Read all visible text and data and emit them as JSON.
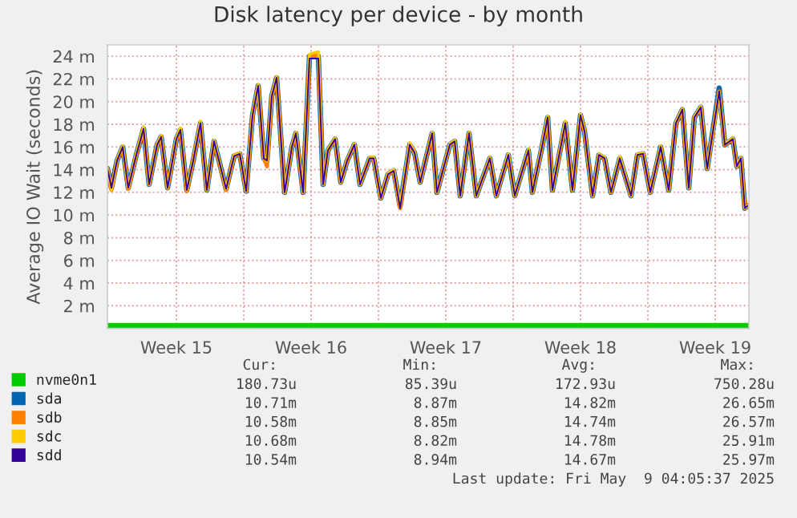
{
  "chart_data": {
    "type": "line",
    "title": "Disk latency per device - by month",
    "ylabel": "Average IO Wait (seconds)",
    "xlim": [
      "2025-04-05T22:00",
      "2025-05-09T06:00"
    ],
    "ylim": [
      0,
      25
    ],
    "xticks": [
      {
        "value": "2025-04-09T12:00",
        "label": "Week 15"
      },
      {
        "value": "2025-04-13",
        "label": null
      },
      {
        "value": "2025-04-16T12:00",
        "label": "Week 16"
      },
      {
        "value": "2025-04-20",
        "label": null
      },
      {
        "value": "2025-04-23T12:00",
        "label": "Week 17"
      },
      {
        "value": "2025-04-27",
        "label": null
      },
      {
        "value": "2025-04-30T12:00",
        "label": "Week 18"
      },
      {
        "value": "2025-05-04",
        "label": null
      },
      {
        "value": "2025-05-07T12:00",
        "label": "Week 19"
      }
    ],
    "yticks": [
      {
        "value": 2,
        "label": "2 m"
      },
      {
        "value": 4,
        "label": "4 m"
      },
      {
        "value": 6,
        "label": "6 m"
      },
      {
        "value": 8,
        "label": "8 m"
      },
      {
        "value": 10,
        "label": "10 m"
      },
      {
        "value": 12,
        "label": "12 m"
      },
      {
        "value": 14,
        "label": "14 m"
      },
      {
        "value": 16,
        "label": "16 m"
      },
      {
        "value": 18,
        "label": "18 m"
      },
      {
        "value": 20,
        "label": "20 m"
      },
      {
        "value": 22,
        "label": "22 m"
      },
      {
        "value": 24,
        "label": "24 m"
      }
    ],
    "grid": true,
    "legend": "bottom left",
    "marker": "none",
    "line_style": "solid",
    "x": [
      "2025-04-05T22:00",
      "2025-04-06T03:00",
      "2025-04-06T10:00",
      "2025-04-06T17:00",
      "2025-04-07T00:00",
      "2025-04-07T10:00",
      "2025-04-07T19:00",
      "2025-04-08T02:00",
      "2025-04-08T12:00",
      "2025-04-08T17:00",
      "2025-04-09T01:00",
      "2025-04-09T12:00",
      "2025-04-09T17:00",
      "2025-04-10T01:00",
      "2025-04-10T09:00",
      "2025-04-10T18:00",
      "2025-04-11T02:00",
      "2025-04-11T11:00",
      "2025-04-12T02:00",
      "2025-04-12T12:00",
      "2025-04-12T19:00",
      "2025-04-13T03:00",
      "2025-04-13T11:00",
      "2025-04-13T18:00",
      "2025-04-14T01:00",
      "2025-04-14T05:00",
      "2025-04-14T11:00",
      "2025-04-14T17:00",
      "2025-04-15T03:00",
      "2025-04-15T12:00",
      "2025-04-15T17:00",
      "2025-04-16T02:00",
      "2025-04-16T10:00",
      "2025-04-16T21:00",
      "2025-04-17T03:00",
      "2025-04-17T09:00",
      "2025-04-17T18:00",
      "2025-04-18T01:00",
      "2025-04-18T09:00",
      "2025-04-18T18:00",
      "2025-04-19T01:00",
      "2025-04-19T13:00",
      "2025-04-19T18:00",
      "2025-04-20T03:00",
      "2025-04-20T12:00",
      "2025-04-20T19:00",
      "2025-04-21T03:00",
      "2025-04-21T15:00",
      "2025-04-21T21:00",
      "2025-04-22T04:00",
      "2025-04-22T19:00",
      "2025-04-23T01:00",
      "2025-04-23T17:00",
      "2025-04-23T23:00",
      "2025-04-24T06:00",
      "2025-04-24T17:00",
      "2025-04-25T02:00",
      "2025-04-25T19:00",
      "2025-04-26T03:00",
      "2025-04-26T18:00",
      "2025-04-27T02:00",
      "2025-04-27T19:00",
      "2025-04-28T00:00",
      "2025-04-28T12:00",
      "2025-04-28T19:00",
      "2025-04-29T01:00",
      "2025-04-29T17:00",
      "2025-04-30T02:00",
      "2025-04-30T12:00",
      "2025-04-30T17:00",
      "2025-05-01T03:00",
      "2025-05-01T11:00",
      "2025-05-01T18:00",
      "2025-05-02T02:00",
      "2025-05-02T13:00",
      "2025-05-03T03:00",
      "2025-05-03T11:00",
      "2025-05-03T18:00",
      "2025-05-04T03:00",
      "2025-05-04T16:00",
      "2025-05-05T02:00",
      "2025-05-05T11:00",
      "2025-05-05T19:00",
      "2025-05-06T03:00",
      "2025-05-06T10:00",
      "2025-05-06T18:00",
      "2025-05-07T02:00",
      "2025-05-07T17:00",
      "2025-05-08T00:00",
      "2025-05-08T10:00",
      "2025-05-08T15:00",
      "2025-05-08T20:00",
      "2025-05-09T01:00",
      "2025-05-09T04:00"
    ],
    "series": [
      {
        "name": "nvme0n1",
        "color": "#00cc00",
        "x": [
          "2025-04-05T22:00",
          "2025-05-09T04:00"
        ],
        "values": [
          0.2,
          0.2
        ]
      },
      {
        "name": "sda",
        "color": "#0066b3",
        "values": [
          14.1,
          12.4,
          14.8,
          16.0,
          12.4,
          15.3,
          17.6,
          12.7,
          16.2,
          16.9,
          12.4,
          16.7,
          17.5,
          12.2,
          14.8,
          18.1,
          12.2,
          16.5,
          12.3,
          15.2,
          15.4,
          12.1,
          18.8,
          21.4,
          15.0,
          14.8,
          20.5,
          22.1,
          12.0,
          16.0,
          17.2,
          12.0,
          24.0,
          24.0,
          12.7,
          15.7,
          16.7,
          12.9,
          14.8,
          16.2,
          12.7,
          15.0,
          15.0,
          11.5,
          13.6,
          13.9,
          10.8,
          16.2,
          15.5,
          12.9,
          17.2,
          12.0,
          16.2,
          16.5,
          11.7,
          17.2,
          11.7,
          15.0,
          11.7,
          15.3,
          11.7,
          15.7,
          12.0,
          16.0,
          18.6,
          12.2,
          18.1,
          12.2,
          18.8,
          17.4,
          11.7,
          15.3,
          15.0,
          12.0,
          15.0,
          11.7,
          15.3,
          15.4,
          12.0,
          16.0,
          12.2,
          18.1,
          19.3,
          12.4,
          18.6,
          19.5,
          14.1,
          21.2,
          16.2,
          16.7,
          14.3,
          15.0,
          10.6,
          10.8
        ]
      },
      {
        "name": "sdb",
        "color": "#ff8000",
        "values": [
          14.1,
          12.2,
          14.8,
          16.0,
          12.3,
          15.3,
          17.6,
          12.7,
          16.2,
          16.9,
          12.4,
          16.7,
          17.5,
          12.1,
          14.8,
          18.1,
          12.2,
          16.5,
          12.2,
          15.2,
          15.4,
          12.1,
          18.8,
          21.4,
          15.0,
          14.3,
          20.5,
          22.1,
          12.0,
          16.0,
          17.2,
          12.0,
          24.0,
          24.1,
          12.7,
          15.7,
          16.7,
          12.9,
          14.8,
          16.2,
          12.7,
          15.0,
          15.0,
          11.5,
          13.6,
          13.9,
          10.6,
          16.2,
          15.5,
          12.9,
          17.2,
          12.0,
          16.2,
          16.5,
          11.7,
          17.2,
          11.7,
          15.0,
          11.7,
          15.3,
          11.7,
          15.7,
          12.0,
          16.0,
          18.6,
          12.2,
          18.1,
          12.2,
          18.8,
          17.4,
          11.7,
          15.3,
          15.0,
          12.0,
          15.0,
          11.7,
          15.3,
          15.4,
          12.0,
          16.0,
          12.2,
          18.1,
          19.3,
          12.4,
          18.6,
          19.5,
          14.1,
          20.9,
          16.2,
          16.7,
          14.3,
          15.0,
          10.6,
          10.8
        ]
      },
      {
        "name": "sdc",
        "color": "#ffcc00",
        "values": [
          14.1,
          12.2,
          14.9,
          16.1,
          12.4,
          15.4,
          17.8,
          12.7,
          16.3,
          17.0,
          12.4,
          16.8,
          17.7,
          12.2,
          14.9,
          18.3,
          12.2,
          16.6,
          12.3,
          15.3,
          15.5,
          12.1,
          18.9,
          21.5,
          15.1,
          14.8,
          20.6,
          22.2,
          12.0,
          16.1,
          17.3,
          12.0,
          24.2,
          24.4,
          12.7,
          15.8,
          16.8,
          12.9,
          14.9,
          16.3,
          12.7,
          15.1,
          15.1,
          11.5,
          13.7,
          14.0,
          10.8,
          16.4,
          15.6,
          12.9,
          17.3,
          12.0,
          16.3,
          16.6,
          11.7,
          17.3,
          11.7,
          15.1,
          11.7,
          15.4,
          11.7,
          15.8,
          12.0,
          16.1,
          18.7,
          12.2,
          18.3,
          12.2,
          18.9,
          17.5,
          11.7,
          15.4,
          15.1,
          12.0,
          15.2,
          11.7,
          15.4,
          15.5,
          12.0,
          16.1,
          12.2,
          18.2,
          19.4,
          12.4,
          18.7,
          19.6,
          14.1,
          20.8,
          16.3,
          16.8,
          14.3,
          15.1,
          10.6,
          10.8
        ]
      },
      {
        "name": "sdd",
        "color": "#330099",
        "values": [
          14.1,
          12.4,
          14.8,
          16.0,
          12.4,
          15.3,
          17.6,
          12.7,
          16.2,
          16.9,
          12.4,
          16.7,
          17.5,
          12.2,
          14.8,
          18.1,
          12.2,
          16.5,
          12.3,
          15.2,
          15.4,
          12.1,
          18.8,
          21.4,
          15.0,
          14.8,
          20.5,
          22.1,
          12.0,
          16.0,
          17.2,
          12.0,
          23.8,
          23.8,
          12.7,
          15.7,
          16.7,
          12.9,
          14.8,
          16.2,
          12.7,
          15.0,
          15.0,
          11.5,
          13.6,
          13.9,
          10.6,
          16.2,
          15.5,
          12.9,
          17.2,
          12.0,
          16.2,
          16.5,
          11.7,
          17.2,
          11.7,
          15.0,
          11.7,
          15.3,
          11.7,
          15.7,
          12.0,
          16.0,
          18.6,
          12.2,
          18.1,
          12.2,
          18.8,
          17.4,
          11.7,
          15.3,
          15.0,
          12.0,
          15.0,
          11.7,
          15.3,
          15.4,
          12.0,
          16.0,
          12.2,
          18.1,
          19.3,
          12.4,
          18.6,
          19.5,
          14.1,
          20.9,
          16.2,
          16.7,
          14.3,
          15.0,
          10.6,
          10.8
        ]
      }
    ],
    "annotations": [
      "Cur:",
      "Min:",
      "Avg:",
      "Max:",
      "180.73u",
      "85.39u",
      "172.93u",
      "750.28u",
      "10.71m",
      "8.87m",
      "14.82m",
      "26.65m",
      "10.58m",
      "8.85m",
      "14.74m",
      "26.57m",
      "10.68m",
      "8.82m",
      "14.78m",
      "25.91m",
      "10.54m",
      "8.94m",
      "14.67m",
      "25.97m",
      "Last update: Fri May  9 04:05:37 2025"
    ]
  }
}
